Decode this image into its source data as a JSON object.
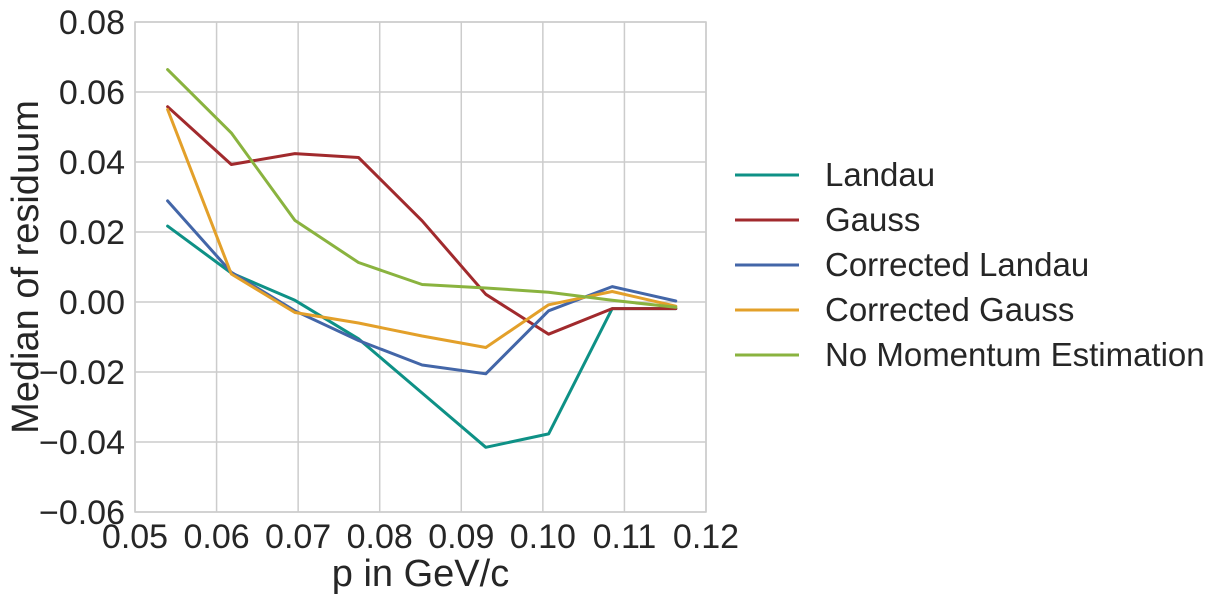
{
  "chart_data": {
    "type": "line",
    "title": "",
    "xlabel": "p in GeV/c",
    "ylabel": "Median of residuum",
    "xlim": [
      0.05,
      0.12
    ],
    "ylim": [
      -0.06,
      0.08
    ],
    "xticks": [
      0.05,
      0.06,
      0.07,
      0.08,
      0.09,
      0.1,
      0.11,
      0.12
    ],
    "xtick_labels": [
      "0.05",
      "0.06",
      "0.07",
      "0.08",
      "0.09",
      "0.10",
      "0.11",
      "0.12"
    ],
    "yticks": [
      -0.06,
      -0.04,
      -0.02,
      0.0,
      0.02,
      0.04,
      0.06,
      0.08
    ],
    "ytick_labels": [
      "−0.06",
      "−0.04",
      "−0.02",
      "0.00",
      "0.02",
      "0.04",
      "0.06",
      "0.08"
    ],
    "grid": true,
    "legend_position": "right-outside",
    "x": [
      0.054,
      0.0618,
      0.0696,
      0.0774,
      0.0852,
      0.093,
      0.1007,
      0.1085,
      0.1163
    ],
    "series": [
      {
        "name": "Landau",
        "color": "#0e9186",
        "values": [
          0.0217,
          0.0083,
          0.0005,
          -0.0105,
          -0.026,
          -0.0415,
          -0.0377,
          -0.0019,
          -0.0019
        ]
      },
      {
        "name": "Gauss",
        "color": "#a12a2d",
        "values": [
          0.0558,
          0.0393,
          0.0424,
          0.0413,
          0.0232,
          0.0022,
          -0.0092,
          -0.0019,
          -0.0019
        ]
      },
      {
        "name": "Corrected Landau",
        "color": "#4366a8",
        "values": [
          0.0289,
          0.0085,
          -0.0025,
          -0.011,
          -0.018,
          -0.0205,
          -0.0025,
          0.0044,
          0.0003
        ]
      },
      {
        "name": "Corrected Gauss",
        "color": "#e3a02a",
        "values": [
          0.055,
          0.008,
          -0.003,
          -0.006,
          -0.0097,
          -0.013,
          -0.0008,
          0.003,
          -0.0012
        ]
      },
      {
        "name": "No Momentum Estimation",
        "color": "#8ab33f",
        "values": [
          0.0664,
          0.0483,
          0.0233,
          0.0113,
          0.005,
          0.004,
          0.0028,
          0.0005,
          -0.0015
        ]
      }
    ]
  }
}
